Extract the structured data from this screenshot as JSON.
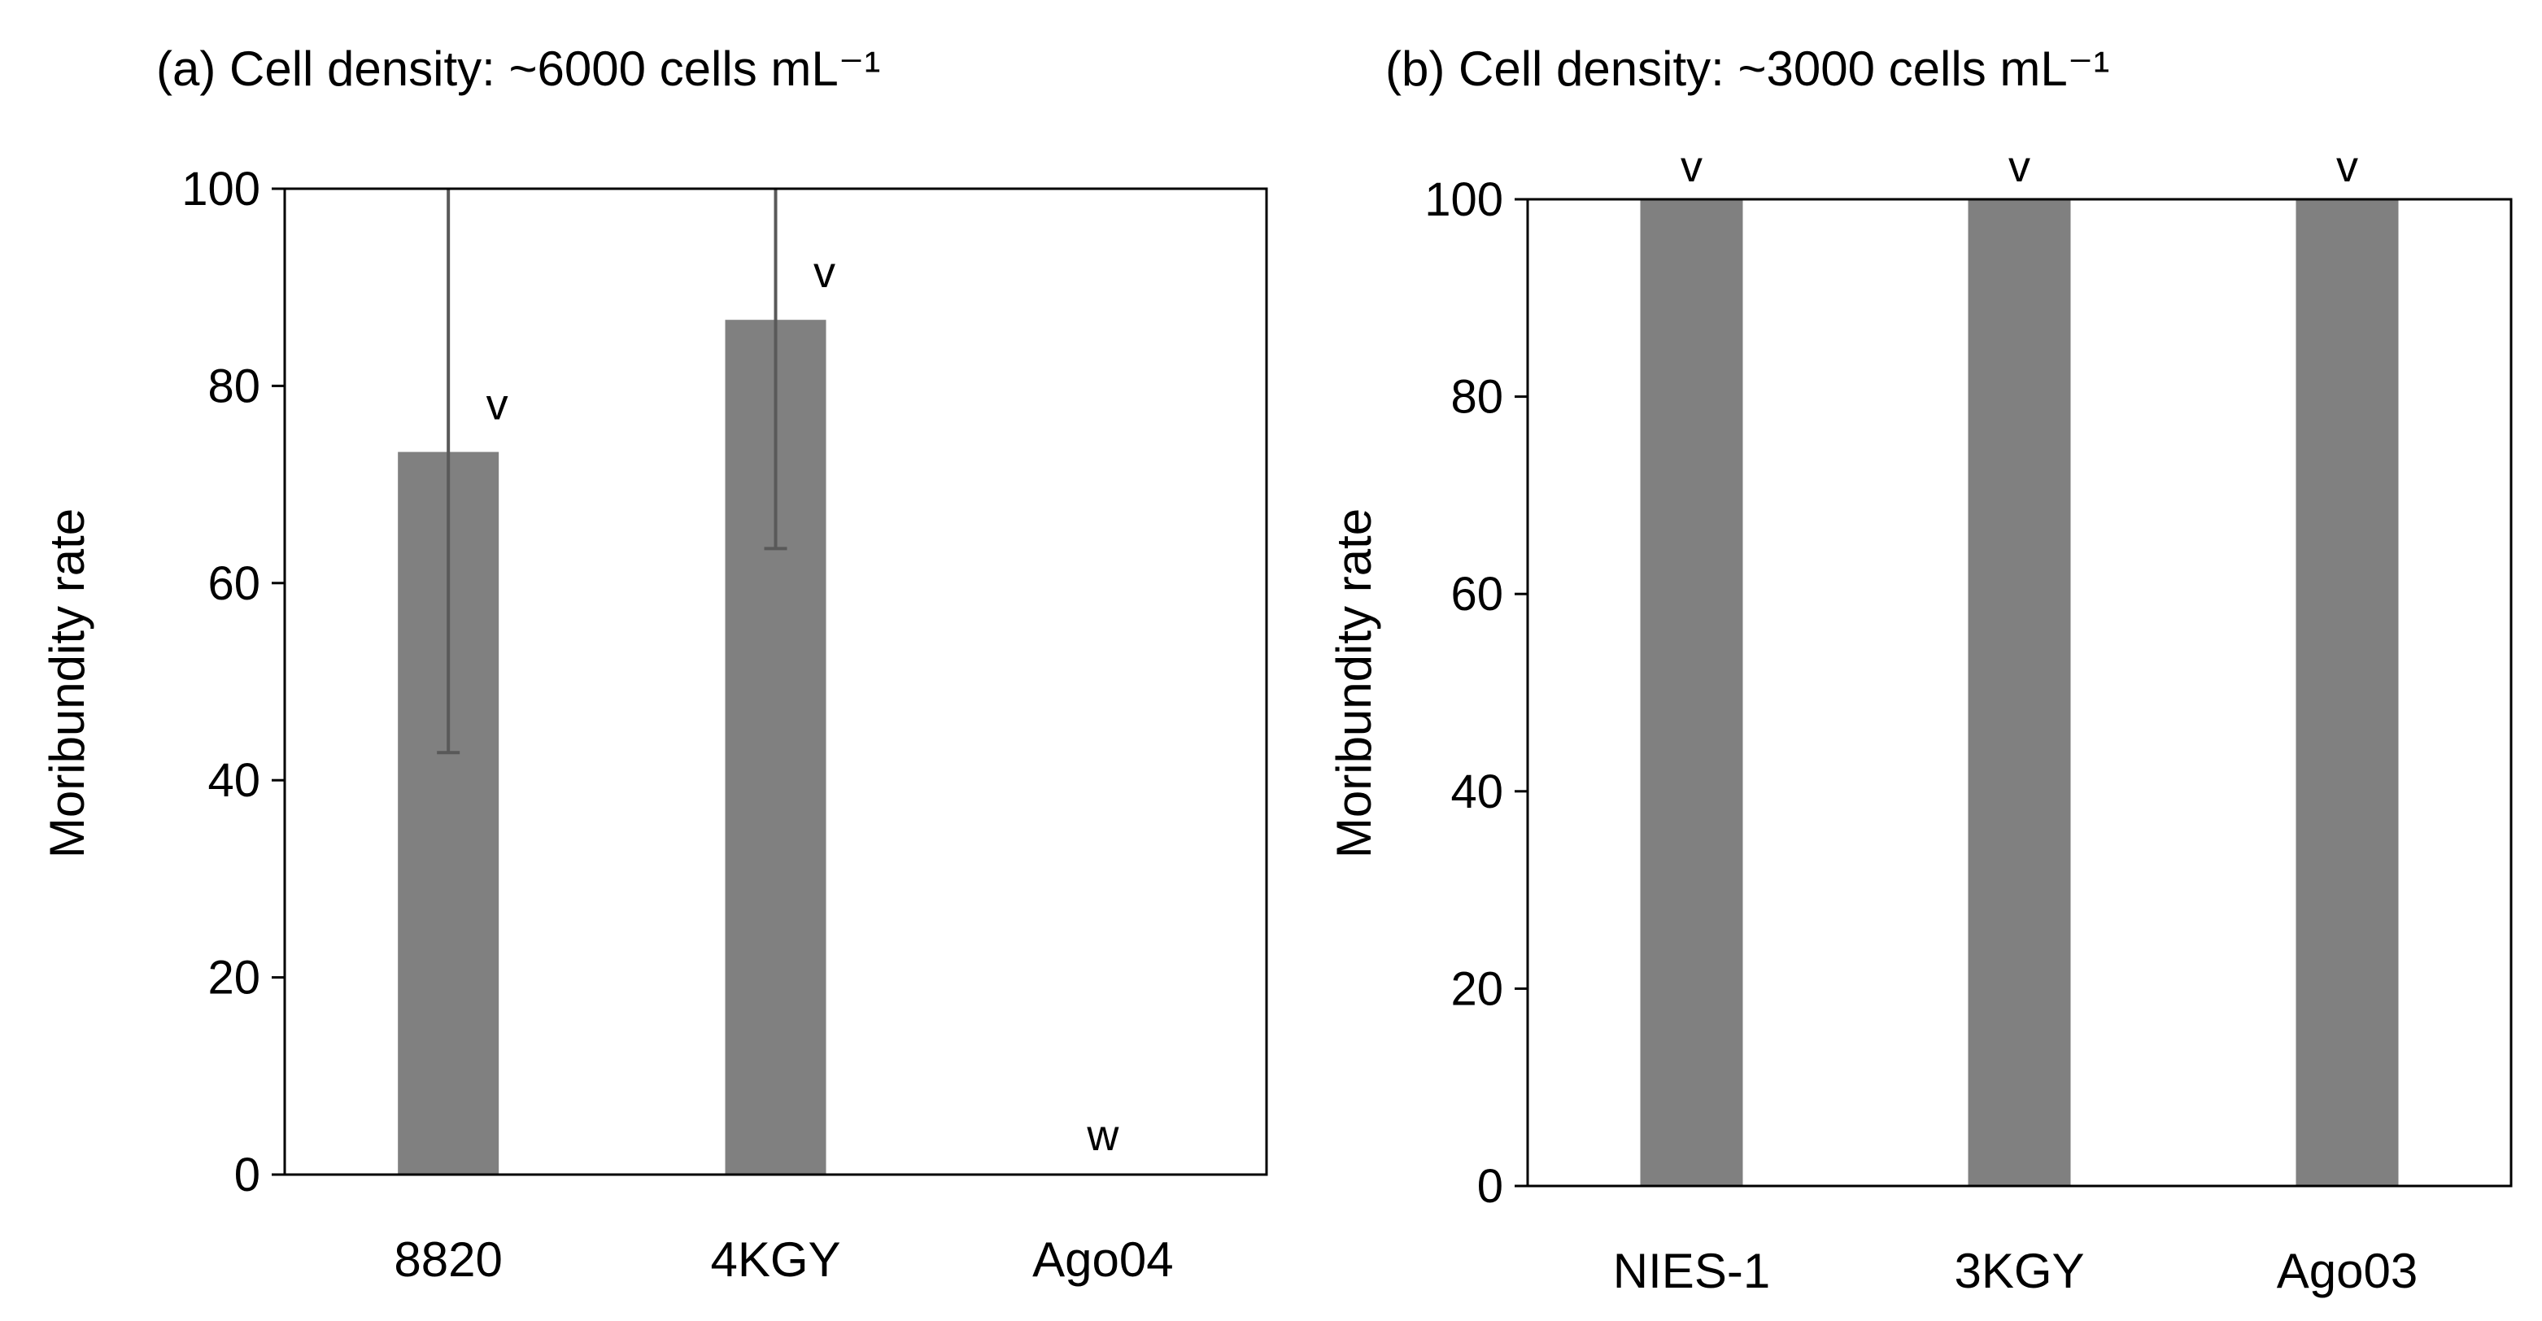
{
  "colors": {
    "bar": "#808080",
    "error_bar": "#595959",
    "axis": "#000000",
    "background": "#ffffff"
  },
  "chart_data": [
    {
      "id": "a",
      "type": "bar",
      "title": "(a) Cell density: ~6000 cells mL⁻¹",
      "xlabel": "",
      "ylabel": "Moribundity rate",
      "ylim": [
        0,
        100
      ],
      "yticks": [
        0,
        20,
        40,
        60,
        80,
        100
      ],
      "ytick_labels": [
        "0",
        "20",
        "40",
        "60",
        "80",
        "100"
      ],
      "categories": [
        "8820",
        "4KGY",
        "Ago04"
      ],
      "values": [
        73.3,
        86.7,
        0
      ],
      "error_minus": [
        30.5,
        23.2,
        0
      ],
      "error_plus": [
        26.7,
        13.3,
        0
      ],
      "significance": [
        "v",
        "v",
        "w"
      ],
      "grid": false
    },
    {
      "id": "b",
      "type": "bar",
      "title": "(b) Cell density: ~3000 cells mL⁻¹",
      "xlabel": "",
      "ylabel": "Moribundity rate",
      "ylim": [
        0,
        100
      ],
      "yticks": [
        0,
        20,
        40,
        60,
        80,
        100
      ],
      "ytick_labels": [
        "0",
        "20",
        "40",
        "60",
        "80",
        "100"
      ],
      "categories": [
        "NIES-1",
        "3KGY",
        "Ago03"
      ],
      "values": [
        100,
        100,
        100
      ],
      "error_minus": [
        0,
        0,
        0
      ],
      "error_plus": [
        0,
        0,
        0
      ],
      "significance": [
        "v",
        "v",
        "v"
      ],
      "grid": false
    }
  ]
}
